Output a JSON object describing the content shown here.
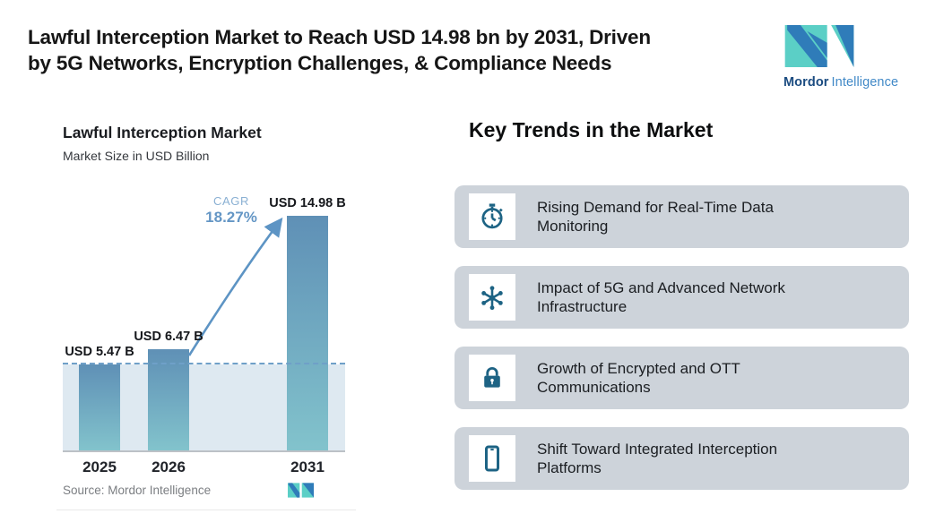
{
  "header": {
    "title_line1": "Lawful Interception Market to Reach USD 14.98 bn by 2031, Driven",
    "title_line2": "by 5G Networks, Encryption Challenges, & Compliance Needs"
  },
  "brand": {
    "primary": "Mordor",
    "secondary": "Intelligence",
    "teal": "#5BCFC6",
    "blue": "#2F7CB9"
  },
  "chart": {
    "title": "Lawful Interception Market",
    "subtitle": "Market Size in USD Billion",
    "cagr_label": "CAGR",
    "cagr_value": "18.27%",
    "source": "Source: Mordor Intelligence"
  },
  "chart_data": {
    "type": "bar",
    "title": "Lawful Interception Market",
    "ylabel": "Market Size in USD Billion",
    "categories": [
      "2025",
      "2026",
      "2031"
    ],
    "values": [
      5.47,
      6.47,
      14.98
    ],
    "bar_labels": [
      "USD 5.47 B",
      "USD 6.47 B",
      "USD 14.98 B"
    ],
    "cagr_percent": 18.27,
    "baseline_value": 5.47,
    "ylim": [
      0,
      16.5
    ],
    "grid": false,
    "legend": "none",
    "annotations": [
      "CAGR 18.27%",
      "dashed line at 2025 level",
      "growth arrow from 2026 to 2031"
    ],
    "colors": {
      "bar_top": "#5F90B6",
      "bar_bottom": "#82C3CC",
      "dashed_line": "#6FA0C8",
      "shade": "#DEE9F1",
      "arrow": "#5D94C4",
      "axis": "#BCC1C6"
    }
  },
  "trends": {
    "heading": "Key Trends in the Market",
    "card_bg": "#CDD3DA",
    "icon_color": "#1D6384",
    "items": [
      {
        "icon": "stopwatch-icon",
        "text": "Rising Demand for Real-Time Data Monitoring"
      },
      {
        "icon": "network-icon",
        "text": "Impact of 5G and Advanced Network Infrastructure"
      },
      {
        "icon": "lock-icon",
        "text": "Growth of Encrypted and OTT Communications"
      },
      {
        "icon": "smartphone-icon",
        "text": "Shift Toward Integrated Interception Platforms"
      }
    ]
  }
}
